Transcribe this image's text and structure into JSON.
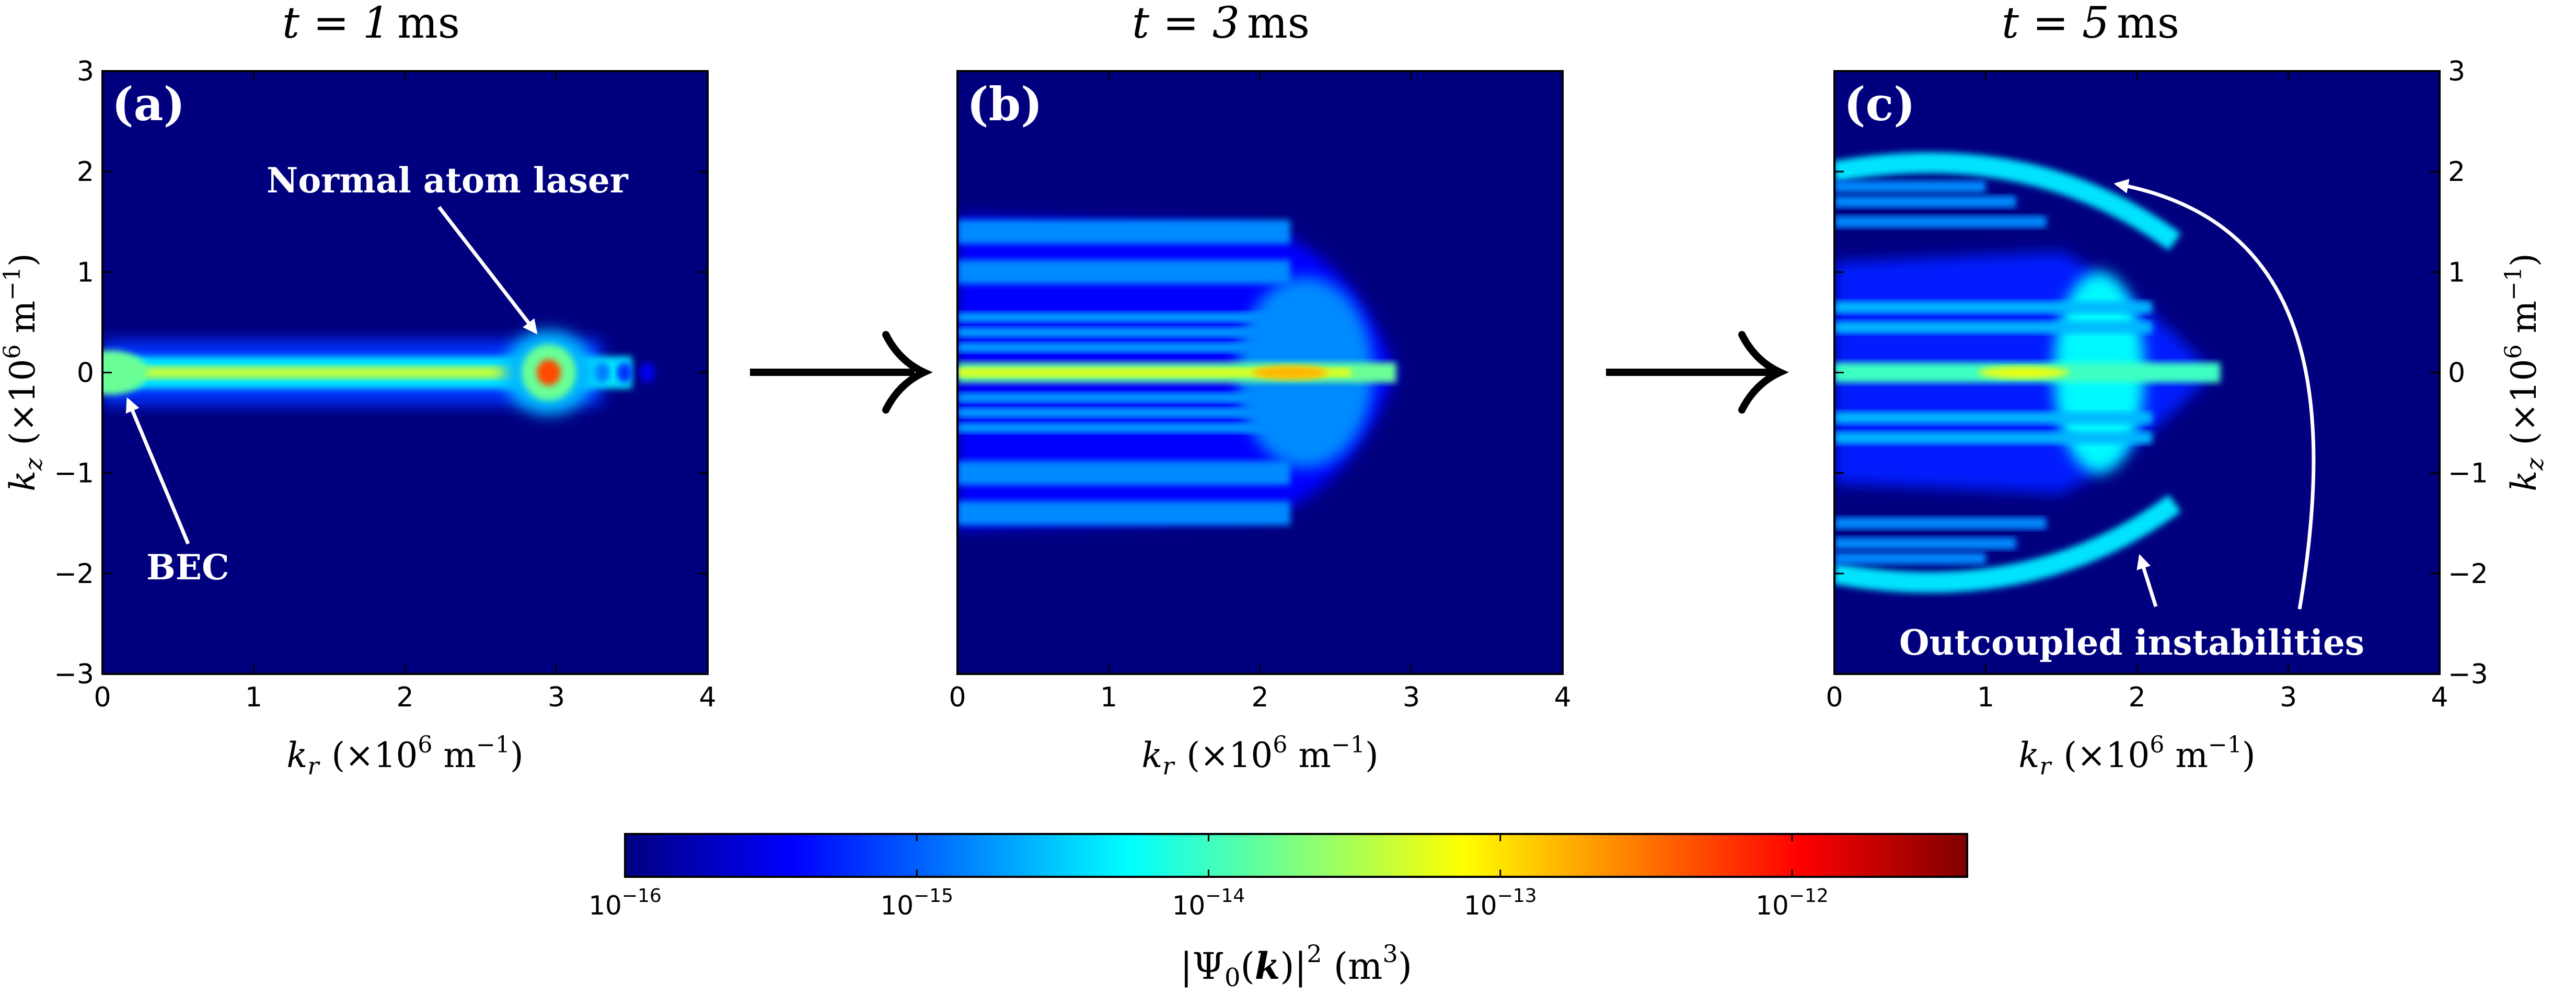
{
  "chart_data": [
    {
      "type": "heatmap",
      "panel_label": "(a)",
      "title": {
        "prefix": "t = 1",
        "unit": "ms"
      },
      "xlabel": {
        "var": "k",
        "sub": "r",
        "open": "(×10",
        "exp": "6",
        "mid": " m",
        "exp2": "−1",
        "close": ")"
      },
      "ylabel": {
        "var": "k",
        "sub": "z",
        "open": "(×10",
        "exp": "6",
        "mid": " m",
        "exp2": "−1",
        "close": ")"
      },
      "xlim": [
        0,
        4
      ],
      "ylim": [
        -3,
        3
      ],
      "x_ticks": [
        "0",
        "1",
        "2",
        "3",
        "4"
      ],
      "y_ticks": [
        "−3",
        "−2",
        "−1",
        "0",
        "1",
        "2",
        "3"
      ],
      "y_axis_side": "left",
      "annotations": [
        {
          "text": "Normal atom laser",
          "arrow_to": [
            2.95,
            0.2
          ]
        },
        {
          "text": "BEC",
          "arrow_to": [
            0.15,
            -0.2
          ]
        }
      ],
      "features": [
        {
          "name": "BEC jet",
          "kr_range": [
            0,
            3.8
          ],
          "kz_center": 0,
          "peak_log10": -13.5
        },
        {
          "name": "Normal atom laser",
          "kr": 2.95,
          "kz": 0,
          "peak_log10": -12.3
        }
      ]
    },
    {
      "type": "heatmap",
      "panel_label": "(b)",
      "title": {
        "prefix": "t = 3",
        "unit": "ms"
      },
      "xlabel": {
        "var": "k",
        "sub": "r",
        "open": "(×10",
        "exp": "6",
        "mid": " m",
        "exp2": "−1",
        "close": ")"
      },
      "xlim": [
        0,
        4
      ],
      "ylim": [
        -3,
        3
      ],
      "x_ticks": [
        "0",
        "1",
        "2",
        "3",
        "4"
      ],
      "y_axis_side": "none",
      "features": [
        {
          "name": "central jet",
          "kr_range": [
            0,
            3.0
          ],
          "kz_center": 0,
          "peak_log10": -12.8
        },
        {
          "name": "broadened halo",
          "kr_range": [
            0,
            2.9
          ],
          "kz_range": [
            -1.6,
            1.6
          ],
          "peak_log10": -15.0
        }
      ]
    },
    {
      "type": "heatmap",
      "panel_label": "(c)",
      "title": {
        "prefix": "t = 5",
        "unit": "ms"
      },
      "xlabel": {
        "var": "k",
        "sub": "r",
        "open": "(×10",
        "exp": "6",
        "mid": " m",
        "exp2": "−1",
        "close": ")"
      },
      "ylabel": {
        "var": "k",
        "sub": "z",
        "open": "(×10",
        "exp": "6",
        "mid": " m",
        "exp2": "−1",
        "close": ")"
      },
      "xlim": [
        0,
        4
      ],
      "ylim": [
        -3,
        3
      ],
      "x_ticks": [
        "0",
        "1",
        "2",
        "3",
        "4"
      ],
      "y_ticks": [
        "−3",
        "−2",
        "−1",
        "0",
        "1",
        "2",
        "3"
      ],
      "y_axis_side": "right",
      "annotations": [
        {
          "text": "Outcoupled instabilities",
          "arrows_to": [
            [
              1.85,
              1.9
            ],
            [
              2.0,
              -1.85
            ]
          ]
        }
      ],
      "features": [
        {
          "name": "central jet",
          "kr_range": [
            0,
            2.6
          ],
          "kz_center": 0,
          "peak_log10": -13.2
        },
        {
          "name": "upper instability arc",
          "kr_range": [
            0,
            2.3
          ],
          "kz_range": [
            1.3,
            2.3
          ],
          "peak_log10": -14.3
        },
        {
          "name": "lower instability arc",
          "kr_range": [
            0,
            2.3
          ],
          "kz_range": [
            -2.3,
            -1.3
          ],
          "peak_log10": -14.3
        }
      ]
    }
  ],
  "arrows_between_panels": [
    "right-arrow",
    "right-arrow"
  ],
  "colorbar": {
    "scale": "log",
    "range_log10": [
      -16,
      -11.4
    ],
    "colormap": "jet",
    "stops": [
      "#00007f",
      "#0000ff",
      "#007fff",
      "#00ffff",
      "#7fff7f",
      "#ffff00",
      "#ff7f00",
      "#ff0000",
      "#7f0000"
    ],
    "ticks": [
      {
        "base": "10",
        "exp": "−16",
        "log10": -16
      },
      {
        "base": "10",
        "exp": "−15",
        "log10": -15
      },
      {
        "base": "10",
        "exp": "−14",
        "log10": -14
      },
      {
        "base": "10",
        "exp": "−13",
        "log10": -13
      },
      {
        "base": "10",
        "exp": "−12",
        "log10": -12
      }
    ],
    "label": {
      "open": "|Ψ",
      "sub": "0",
      "paren_open": "(",
      "bold": "k",
      "paren_close": ")|",
      "exp": "2",
      "unit_open": " (m",
      "unit_exp": "3",
      "unit_close": ")"
    }
  }
}
